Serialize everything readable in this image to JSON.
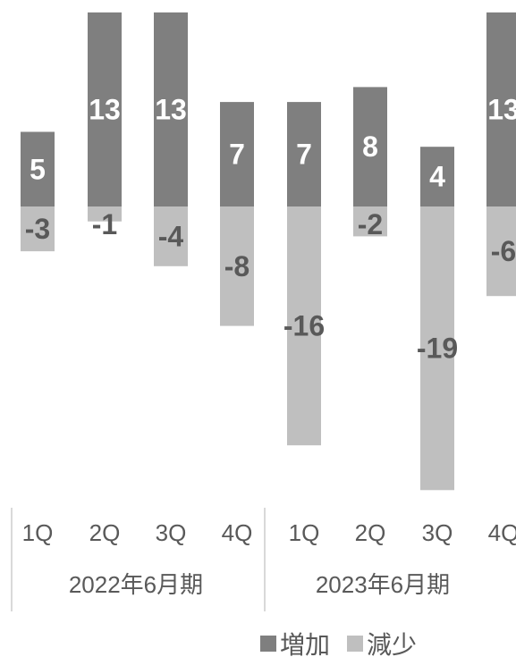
{
  "chart_data": {
    "type": "bar",
    "stacked": true,
    "categories": [
      "1Q",
      "2Q",
      "3Q",
      "4Q",
      "1Q",
      "2Q",
      "3Q",
      "4Q"
    ],
    "groups": [
      {
        "label": "2022年6月期",
        "categories": [
          "1Q",
          "2Q",
          "3Q",
          "4Q"
        ]
      },
      {
        "label": "2023年6月期",
        "categories": [
          "1Q",
          "2Q",
          "3Q",
          "4Q"
        ]
      }
    ],
    "series": [
      {
        "name": "増加",
        "color": "#7f7f7f",
        "label_color": "#ffffff",
        "values": [
          5,
          13,
          13,
          7,
          7,
          8,
          4,
          13
        ]
      },
      {
        "name": "減少",
        "color": "#bfbfbf",
        "label_color": "#595959",
        "values": [
          -3,
          -1,
          -4,
          -8,
          -16,
          -2,
          -19,
          -6
        ]
      }
    ],
    "legend_position": "bottom-right",
    "grid": false
  }
}
